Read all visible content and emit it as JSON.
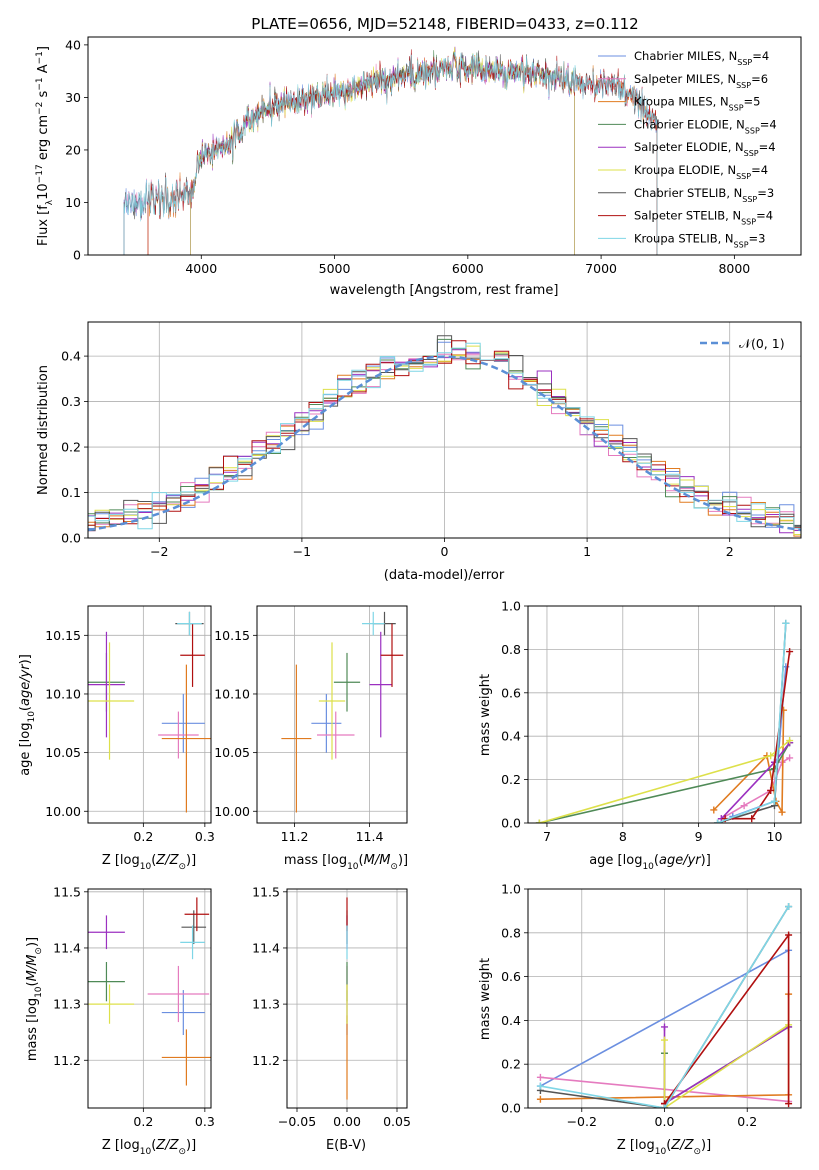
{
  "figure": {
    "title": "PLATE=0656, MJD=52148, FIBERID=0433, z=0.112"
  },
  "colors": {
    "Chabrier MILES": "#6b8fe0",
    "Salpeter MILES": "#e57bbf",
    "Kroupa MILES": "#e07b20",
    "Chabrier ELODIE": "#4f8a57",
    "Salpeter ELODIE": "#9b30c0",
    "Kroupa ELODIE": "#dde04a",
    "Chabrier STELIB": "#555555",
    "Salpeter STELIB": "#b01010",
    "Kroupa STELIB": "#7fd6e6",
    "gaussian": "#5b8fd6",
    "grid": "#b0b0b0"
  },
  "chart_data": [
    {
      "id": "spectrum",
      "type": "line",
      "title": "PLATE=0656, MJD=52148, FIBERID=0433, z=0.112",
      "xlabel": "wavelength [Angstrom, rest frame]",
      "ylabel": "Flux [f_λ 10^-17 erg cm^-2 s^-1 A^-1]",
      "xlim": [
        3150,
        8500
      ],
      "ylim": [
        0,
        41.5
      ],
      "xticks": [
        4000,
        5000,
        6000,
        7000,
        8000
      ],
      "yticks": [
        0,
        10,
        20,
        30,
        40
      ],
      "grid": false,
      "legend_position": "top-right",
      "continuum_x": [
        3420,
        3500,
        3600,
        3700,
        3800,
        3900,
        3950,
        4000,
        4100,
        4200,
        4300,
        4400,
        4500,
        4700,
        4900,
        5100,
        5200,
        5400,
        5600,
        5800,
        5900,
        6100,
        6300,
        6500,
        6700,
        6800,
        7000,
        7100,
        7200,
        7300,
        7420
      ],
      "continuum_y": [
        10.2,
        9.8,
        10.5,
        10.2,
        10.8,
        12.0,
        13.5,
        18.5,
        20.0,
        20.5,
        24.0,
        26.5,
        27.5,
        29.5,
        30.5,
        31.0,
        32.5,
        33.5,
        34.5,
        35.0,
        35.8,
        35.5,
        34.5,
        34.5,
        33.5,
        33.0,
        32.5,
        32.5,
        31.0,
        28.0,
        25.0
      ],
      "series": [
        {
          "name": "Chabrier MILES, N_SSP=4",
          "x_range": [
            3420,
            7420
          ]
        },
        {
          "name": "Salpeter MILES, N_SSP=6",
          "x_range": [
            3420,
            7420
          ]
        },
        {
          "name": "Kroupa MILES, N_SSP=5",
          "x_range": [
            3600,
            7420
          ]
        },
        {
          "name": "Chabrier ELODIE, N_SSP=4",
          "x_range": [
            3920,
            6800
          ]
        },
        {
          "name": "Salpeter ELODIE, N_SSP=4",
          "x_range": [
            3920,
            6800
          ]
        },
        {
          "name": "Kroupa ELODIE, N_SSP=4",
          "x_range": [
            3920,
            6800
          ]
        },
        {
          "name": "Chabrier STELIB, N_SSP=3",
          "x_range": [
            3420,
            7420
          ]
        },
        {
          "name": "Salpeter STELIB, N_SSP=4",
          "x_range": [
            3600,
            7420
          ]
        },
        {
          "name": "Kroupa STELIB, N_SSP=3",
          "x_range": [
            3420,
            7420
          ]
        }
      ]
    },
    {
      "id": "residuals",
      "type": "line",
      "xlabel": "(data-model)/error",
      "ylabel": "Normed distribution",
      "xlim": [
        -2.5,
        2.5
      ],
      "ylim": [
        0,
        0.475
      ],
      "xticks": [
        -2,
        -1,
        0,
        1,
        2
      ],
      "yticks": [
        0.0,
        0.1,
        0.2,
        0.3,
        0.4
      ],
      "grid": true,
      "legend_position": "top-right",
      "legend": [
        "𝒩(0, 1)"
      ],
      "bin_width": 0.1
    },
    {
      "id": "age_vs_Z",
      "type": "scatter",
      "xlabel": "Z [log10(Z/Z_sun)]",
      "ylabel": "age  [log10(age/yr)]",
      "xlim": [
        0.11,
        0.31
      ],
      "ylim": [
        9.99,
        10.175
      ],
      "xticks": [
        0.2,
        0.3
      ],
      "yticks": [
        10.0,
        10.05,
        10.1,
        10.15
      ],
      "grid": true,
      "points": [
        {
          "series": "Chabrier MILES",
          "x": 0.265,
          "y": 10.075,
          "xerr": 0.035,
          "yerr": 0.025
        },
        {
          "series": "Salpeter MILES",
          "x": 0.257,
          "y": 10.065,
          "xerr": 0.033,
          "yerr": 0.02
        },
        {
          "series": "Kroupa MILES",
          "x": 0.27,
          "y": 10.062,
          "xerr": 0.04,
          "yerr": 0.063
        },
        {
          "series": "Chabrier ELODIE",
          "x": 0.14,
          "y": 10.11,
          "xerr": 0.03,
          "yerr": 0.025
        },
        {
          "series": "Salpeter ELODIE",
          "x": 0.14,
          "y": 10.108,
          "xerr": 0.03,
          "yerr": 0.045
        },
        {
          "series": "Kroupa ELODIE",
          "x": 0.145,
          "y": 10.094,
          "xerr": 0.04,
          "yerr": 0.05
        },
        {
          "series": "Chabrier STELIB",
          "x": 0.275,
          "y": 10.16,
          "xerr": 0.023,
          "yerr": 0.01
        },
        {
          "series": "Salpeter STELIB",
          "x": 0.28,
          "y": 10.133,
          "xerr": 0.02,
          "yerr": 0.027
        },
        {
          "series": "Kroupa STELIB",
          "x": 0.275,
          "y": 10.16,
          "xerr": 0.02,
          "yerr": 0.01
        }
      ]
    },
    {
      "id": "age_vs_mass",
      "type": "scatter",
      "xlabel": "mass [log10(M/M_sun)]",
      "ylabel": "",
      "xlim": [
        11.1,
        11.5
      ],
      "ylim": [
        9.99,
        10.175
      ],
      "xticks": [
        11.2,
        11.4
      ],
      "yticks": [
        10.0,
        10.05,
        10.1,
        10.15
      ],
      "grid": true,
      "points": [
        {
          "series": "Chabrier MILES",
          "x": 11.285,
          "y": 10.075,
          "xerr": 0.04,
          "yerr": 0.025
        },
        {
          "series": "Salpeter MILES",
          "x": 11.31,
          "y": 10.065,
          "xerr": 0.05,
          "yerr": 0.02
        },
        {
          "series": "Kroupa MILES",
          "x": 11.205,
          "y": 10.062,
          "xerr": 0.04,
          "yerr": 0.063
        },
        {
          "series": "Chabrier ELODIE",
          "x": 11.34,
          "y": 10.11,
          "xerr": 0.035,
          "yerr": 0.025
        },
        {
          "series": "Salpeter ELODIE",
          "x": 11.43,
          "y": 10.108,
          "xerr": 0.03,
          "yerr": 0.045
        },
        {
          "series": "Kroupa ELODIE",
          "x": 11.3,
          "y": 10.094,
          "xerr": 0.035,
          "yerr": 0.05
        },
        {
          "series": "Chabrier STELIB",
          "x": 11.44,
          "y": 10.16,
          "xerr": 0.03,
          "yerr": 0.01
        },
        {
          "series": "Salpeter STELIB",
          "x": 11.46,
          "y": 10.133,
          "xerr": 0.03,
          "yerr": 0.027
        },
        {
          "series": "Kroupa STELIB",
          "x": 11.41,
          "y": 10.16,
          "xerr": 0.03,
          "yerr": 0.01
        }
      ]
    },
    {
      "id": "weight_vs_age",
      "type": "line",
      "xlabel": "age  [log10(age/yr)]",
      "ylabel": "mass weight",
      "xlim": [
        6.75,
        10.35
      ],
      "ylim": [
        0,
        1.0
      ],
      "xticks": [
        7,
        8,
        9,
        10
      ],
      "yticks": [
        0.0,
        0.2,
        0.4,
        0.6,
        0.8,
        1.0
      ],
      "grid": true,
      "series": [
        {
          "name": "Chabrier MILES",
          "x": [
            9.45,
            10.0,
            10.15
          ],
          "y": [
            0.03,
            0.1,
            0.72
          ]
        },
        {
          "name": "Salpeter MILES",
          "x": [
            9.3,
            9.6,
            9.95,
            10.1,
            10.2
          ],
          "y": [
            0.02,
            0.08,
            0.15,
            0.28,
            0.3
          ]
        },
        {
          "name": "Kroupa MILES",
          "x": [
            9.2,
            9.9,
            10.02,
            10.1,
            10.12
          ],
          "y": [
            0.06,
            0.31,
            0.1,
            0.05,
            0.52
          ]
        },
        {
          "name": "Chabrier ELODIE",
          "x": [
            6.9,
            10.0,
            10.2
          ],
          "y": [
            0.0,
            0.25,
            0.37
          ]
        },
        {
          "name": "Salpeter ELODIE",
          "x": [
            9.3,
            10.0,
            10.2
          ],
          "y": [
            0.02,
            0.28,
            0.37
          ]
        },
        {
          "name": "Kroupa ELODIE",
          "x": [
            6.9,
            9.95,
            10.2
          ],
          "y": [
            0.0,
            0.31,
            0.38
          ]
        },
        {
          "name": "Chabrier STELIB",
          "x": [
            9.25,
            10.0,
            10.15
          ],
          "y": [
            0.0,
            0.08,
            0.92
          ]
        },
        {
          "name": "Salpeter STELIB",
          "x": [
            9.35,
            9.7,
            9.95,
            10.2
          ],
          "y": [
            0.02,
            0.02,
            0.15,
            0.79
          ]
        },
        {
          "name": "Kroupa STELIB",
          "x": [
            9.25,
            10.0,
            10.15
          ],
          "y": [
            0.0,
            0.1,
            0.92
          ]
        }
      ]
    },
    {
      "id": "mass_vs_Z",
      "type": "scatter",
      "xlabel": "Z [log10(Z/Z_sun)]",
      "ylabel": "mass [log10(M/M_sun)]",
      "xlim": [
        0.11,
        0.31
      ],
      "ylim": [
        11.115,
        11.505
      ],
      "xticks": [
        0.2,
        0.3
      ],
      "yticks": [
        11.2,
        11.3,
        11.4,
        11.5
      ],
      "grid": true,
      "points": [
        {
          "series": "Chabrier MILES",
          "x": 0.265,
          "y": 11.285,
          "xerr": 0.035,
          "yerr": 0.04
        },
        {
          "series": "Salpeter MILES",
          "x": 0.257,
          "y": 11.318,
          "xerr": 0.05,
          "yerr": 0.05
        },
        {
          "series": "Kroupa MILES",
          "x": 0.27,
          "y": 11.205,
          "xerr": 0.04,
          "yerr": 0.05
        },
        {
          "series": "Chabrier ELODIE",
          "x": 0.14,
          "y": 11.34,
          "xerr": 0.03,
          "yerr": 0.035
        },
        {
          "series": "Salpeter ELODIE",
          "x": 0.14,
          "y": 11.428,
          "xerr": 0.03,
          "yerr": 0.03
        },
        {
          "series": "Kroupa ELODIE",
          "x": 0.145,
          "y": 11.3,
          "xerr": 0.04,
          "yerr": 0.035
        },
        {
          "series": "Chabrier STELIB",
          "x": 0.282,
          "y": 11.437,
          "xerr": 0.02,
          "yerr": 0.03
        },
        {
          "series": "Salpeter STELIB",
          "x": 0.287,
          "y": 11.46,
          "xerr": 0.02,
          "yerr": 0.03
        },
        {
          "series": "Kroupa STELIB",
          "x": 0.28,
          "y": 11.41,
          "xerr": 0.02,
          "yerr": 0.03
        }
      ]
    },
    {
      "id": "mass_vs_ebv",
      "type": "scatter",
      "xlabel": "E(B-V)",
      "ylabel": "",
      "xlim": [
        -0.06,
        0.06
      ],
      "ylim": [
        11.115,
        11.505
      ],
      "xticks": [
        -0.05,
        0.0,
        0.05
      ],
      "xtick_labels": [
        "−0.05",
        "0.00",
        "0.05"
      ],
      "yticks": [
        11.2,
        11.3,
        11.4,
        11.5
      ],
      "grid": true,
      "points": [
        {
          "series": "Chabrier MILES",
          "x": 0.0,
          "y": 11.285,
          "xerr": 0,
          "yerr": 0.04
        },
        {
          "series": "Salpeter MILES",
          "x": 0.0,
          "y": 11.318,
          "xerr": 0,
          "yerr": 0.05
        },
        {
          "series": "Kroupa MILES",
          "x": 0.0,
          "y": 11.205,
          "xerr": 0,
          "yerr": 0.075
        },
        {
          "series": "Chabrier ELODIE",
          "x": 0.0,
          "y": 11.34,
          "xerr": 0,
          "yerr": 0.035
        },
        {
          "series": "Salpeter ELODIE",
          "x": 0.0,
          "y": 11.428,
          "xerr": 0,
          "yerr": 0.03
        },
        {
          "series": "Kroupa ELODIE",
          "x": 0.0,
          "y": 11.3,
          "xerr": 0,
          "yerr": 0.035
        },
        {
          "series": "Chabrier STELIB",
          "x": 0.0,
          "y": 11.437,
          "xerr": 0,
          "yerr": 0.03
        },
        {
          "series": "Salpeter STELIB",
          "x": 0.0,
          "y": 11.46,
          "xerr": 0,
          "yerr": 0.03
        },
        {
          "series": "Kroupa STELIB",
          "x": 0.0,
          "y": 11.41,
          "xerr": 0,
          "yerr": 0.03
        }
      ]
    },
    {
      "id": "weight_vs_Z",
      "type": "line",
      "xlabel": "Z [log10(Z/Z_sun)]",
      "ylabel": "mass weight",
      "xlim": [
        -0.33,
        0.33
      ],
      "ylim": [
        0,
        1.0
      ],
      "xticks": [
        -0.2,
        0.0,
        0.2
      ],
      "xtick_labels": [
        "−0.2",
        "0.0",
        "0.2"
      ],
      "yticks": [
        0.0,
        0.2,
        0.4,
        0.6,
        0.8,
        1.0
      ],
      "grid": true,
      "series": [
        {
          "name": "Chabrier MILES",
          "x": [
            -0.3,
            0.3
          ],
          "y": [
            0.1,
            0.72
          ]
        },
        {
          "name": "Salpeter MILES",
          "x": [
            -0.3,
            0.3
          ],
          "y": [
            0.14,
            0.03
          ]
        },
        {
          "name": "Kroupa MILES",
          "x": [
            -0.3,
            0.3,
            0.3
          ],
          "y": [
            0.04,
            0.06,
            0.52
          ]
        },
        {
          "name": "Chabrier ELODIE",
          "x": [
            0.0,
            0.0,
            0.3
          ],
          "y": [
            0.25,
            0.02,
            0.37
          ]
        },
        {
          "name": "Salpeter ELODIE",
          "x": [
            0.0,
            0.0,
            0.3
          ],
          "y": [
            0.37,
            0.02,
            0.37
          ]
        },
        {
          "name": "Kroupa ELODIE",
          "x": [
            0.0,
            0.0,
            0.3
          ],
          "y": [
            0.31,
            0.0,
            0.38
          ]
        },
        {
          "name": "Chabrier STELIB",
          "x": [
            -0.3,
            0.0,
            0.3
          ],
          "y": [
            0.08,
            0.0,
            0.92
          ]
        },
        {
          "name": "Salpeter STELIB",
          "x": [
            0.0,
            0.3,
            0.3
          ],
          "y": [
            0.02,
            0.79,
            0.02
          ]
        },
        {
          "name": "Kroupa STELIB",
          "x": [
            -0.3,
            0.0,
            0.3
          ],
          "y": [
            0.1,
            0.0,
            0.92
          ]
        }
      ]
    }
  ]
}
